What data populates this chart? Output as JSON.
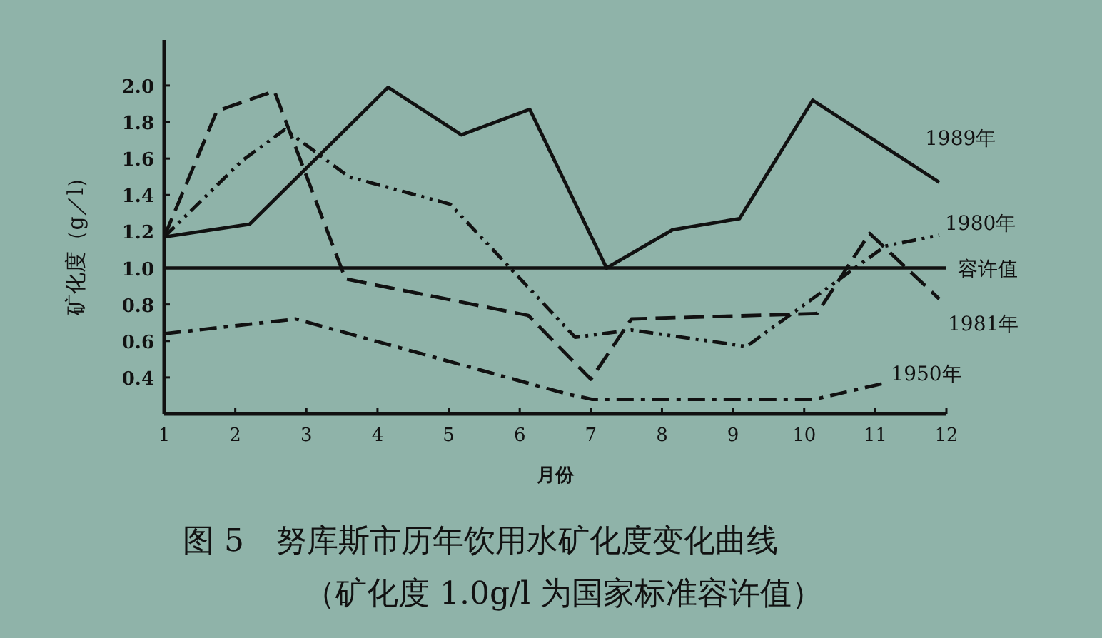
{
  "chart_data": {
    "type": "line",
    "title": "图 5　努库斯市历年饮用水矿化度变化曲线",
    "subtitle": "（矿化度 1.0g/l 为国家标准容许值）",
    "xlabel": "月份",
    "ylabel": "矿化度（g／l）",
    "xlim": [
      1,
      12
    ],
    "ylim": [
      0.2,
      2.25
    ],
    "xticks": [
      1,
      2,
      3,
      4,
      5,
      6,
      7,
      8,
      9,
      10,
      11,
      12
    ],
    "yticks": [
      {
        "value": 0.4,
        "label": "0.4"
      },
      {
        "value": 0.6,
        "label": "0.6"
      },
      {
        "value": 0.8,
        "label": "0.8"
      },
      {
        "value": 1.0,
        "label": "1.0"
      },
      {
        "value": 1.2,
        "label": "1.2"
      },
      {
        "value": 1.4,
        "label": "1.4"
      },
      {
        "value": 1.6,
        "label": "1.6"
      },
      {
        "value": 1.8,
        "label": "1.8"
      },
      {
        "value": 2.0,
        "label": "2.0"
      }
    ],
    "grid": false,
    "marker": "none",
    "ref_lines": [
      {
        "axis": "y",
        "value": 1.0,
        "label": "容许值",
        "color": "#111111",
        "line_style": "solid"
      }
    ],
    "series": [
      {
        "name": "1989年",
        "color": "#111111",
        "line_style": "solid",
        "x": [
          1.0,
          2.2,
          4.15,
          5.18,
          6.14,
          7.22,
          8.15,
          9.09,
          10.12,
          11.9
        ],
        "values": [
          1.17,
          1.24,
          1.99,
          1.73,
          1.87,
          1.0,
          1.21,
          1.27,
          1.92,
          1.47
        ]
      },
      {
        "name": "1980年",
        "color": "#111111",
        "line_style": "dashdotdot",
        "x": [
          1.0,
          2.1,
          2.7,
          3.6,
          5.02,
          6.78,
          7.57,
          9.19,
          11.14,
          11.9
        ],
        "values": [
          1.17,
          1.59,
          1.76,
          1.5,
          1.35,
          0.62,
          0.66,
          0.57,
          1.12,
          1.18
        ]
      },
      {
        "name": "1981年",
        "color": "#111111",
        "line_style": "dashed",
        "x": [
          1.0,
          1.74,
          2.55,
          3.55,
          6.12,
          7.0,
          7.57,
          10.18,
          10.92,
          11.9
        ],
        "values": [
          1.17,
          1.86,
          1.97,
          0.94,
          0.74,
          0.39,
          0.72,
          0.75,
          1.19,
          0.83
        ]
      },
      {
        "name": "1950年",
        "color": "#111111",
        "line_style": "dashdot",
        "x": [
          1.0,
          2.85,
          6.66,
          7.02,
          10.14,
          11.14
        ],
        "values": [
          0.64,
          0.72,
          0.31,
          0.28,
          0.28,
          0.37
        ]
      }
    ]
  }
}
